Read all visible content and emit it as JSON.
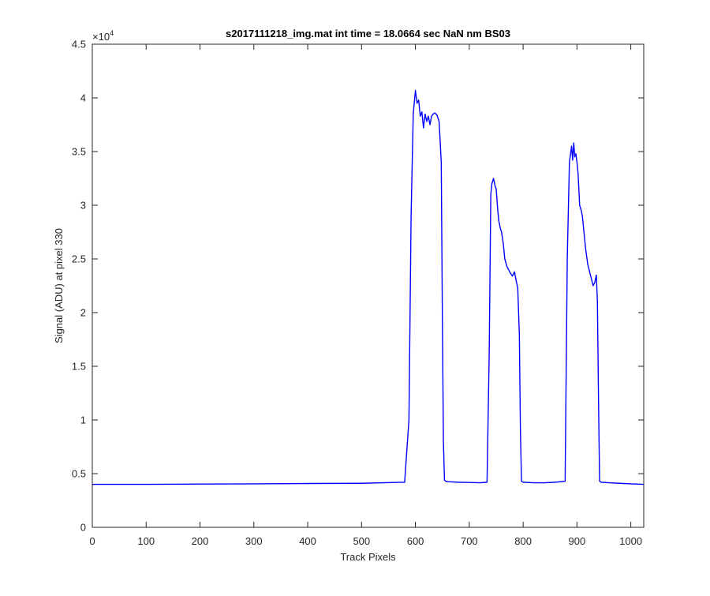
{
  "chart_data": {
    "type": "line",
    "title": "s2017111218_img.mat int time = 18.0664 sec  NaN nm BS03",
    "xlabel": "Track Pixels",
    "ylabel": "Signal (ADU) at pixel 330",
    "xlim": [
      0,
      1024
    ],
    "ylim": [
      0,
      45000
    ],
    "y_exponent_label": "×10",
    "y_exponent_power": "4",
    "x_ticks": [
      0,
      100,
      200,
      300,
      400,
      500,
      600,
      700,
      800,
      900,
      1000
    ],
    "x_tick_labels": [
      "0",
      "100",
      "200",
      "300",
      "400",
      "500",
      "600",
      "700",
      "800",
      "900",
      "1000"
    ],
    "y_ticks": [
      0,
      5000,
      10000,
      15000,
      20000,
      25000,
      30000,
      35000,
      40000,
      45000
    ],
    "y_tick_labels": [
      "0",
      "0.5",
      "1",
      "1.5",
      "2",
      "2.5",
      "3",
      "3.5",
      "4",
      "4.5"
    ],
    "grid": false,
    "line_color": "#0000ff",
    "series": [
      {
        "x": [
          0,
          100,
          200,
          300,
          400,
          500,
          580,
          588,
          592,
          596,
          600,
          603,
          606,
          609,
          612,
          615,
          618,
          621,
          624,
          627,
          630,
          633,
          636,
          640,
          644,
          648,
          650,
          652,
          654,
          656,
          660,
          680,
          700,
          720,
          733,
          737,
          740,
          742,
          745,
          748,
          750,
          753,
          755,
          758,
          760,
          763,
          766,
          770,
          775,
          780,
          784,
          787,
          790,
          793,
          795,
          797,
          800,
          820,
          840,
          860,
          878,
          882,
          886,
          890,
          892,
          894,
          896,
          898,
          900,
          902,
          905,
          908,
          910,
          913,
          916,
          920,
          925,
          930,
          933,
          936,
          938,
          940,
          942,
          945,
          960,
          980,
          1000,
          1024
        ],
        "y": [
          4000,
          4000,
          4030,
          4050,
          4080,
          4100,
          4200,
          10000,
          29000,
          38500,
          40700,
          39500,
          39800,
          38300,
          38700,
          37200,
          38500,
          37800,
          38300,
          37500,
          38300,
          38500,
          38600,
          38400,
          37800,
          34000,
          20000,
          8000,
          4400,
          4300,
          4250,
          4200,
          4180,
          4150,
          4200,
          16000,
          31000,
          32000,
          32500,
          31800,
          31500,
          29500,
          28500,
          27800,
          27500,
          26500,
          25000,
          24300,
          23800,
          23400,
          23800,
          23000,
          22300,
          18000,
          9000,
          4300,
          4200,
          4150,
          4150,
          4200,
          4300,
          25000,
          34000,
          35500,
          34200,
          35800,
          34500,
          34800,
          34000,
          33000,
          30000,
          29500,
          29000,
          27500,
          26000,
          24500,
          23500,
          22500,
          22800,
          23500,
          21000,
          12000,
          4300,
          4200,
          4150,
          4100,
          4050,
          4000
        ]
      }
    ]
  }
}
